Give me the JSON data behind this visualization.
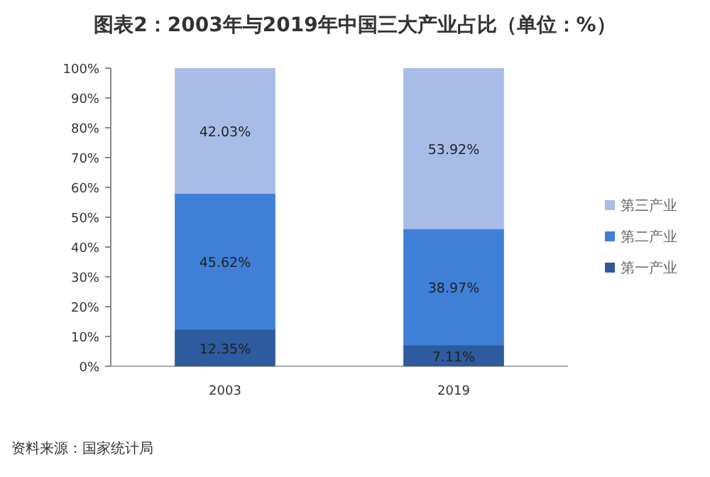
{
  "chart_data": {
    "type": "bar",
    "title": "图表2：2003年与2019年中国三大产业占比（单位：%）",
    "categories": [
      "2003",
      "2019"
    ],
    "stacked": true,
    "series": [
      {
        "name": "第一产业",
        "color": "#2e5a9e",
        "values": [
          12.35,
          7.11
        ],
        "value_labels": [
          "12.35%",
          "7.11%"
        ]
      },
      {
        "name": "第二产业",
        "color": "#3f7fd6",
        "values": [
          45.62,
          38.97
        ],
        "value_labels": [
          "45.62%",
          "38.97%"
        ]
      },
      {
        "name": "第三产业",
        "color": "#a8bce8",
        "values": [
          42.03,
          53.92
        ],
        "value_labels": [
          "42.03%",
          "53.92%"
        ]
      }
    ],
    "ylim": [
      0,
      100
    ],
    "yticks": [
      {
        "value": 0,
        "label": "0%"
      },
      {
        "value": 10,
        "label": "10%"
      },
      {
        "value": 20,
        "label": "20%"
      },
      {
        "value": 30,
        "label": "30%"
      },
      {
        "value": 40,
        "label": "40%"
      },
      {
        "value": 50,
        "label": "50%"
      },
      {
        "value": 60,
        "label": "60%"
      },
      {
        "value": 70,
        "label": "70%"
      },
      {
        "value": 80,
        "label": "80%"
      },
      {
        "value": 90,
        "label": "90%"
      },
      {
        "value": 100,
        "label": "100%"
      }
    ],
    "legend": "right",
    "annotations": [
      "资料来源：国家统计局"
    ]
  }
}
